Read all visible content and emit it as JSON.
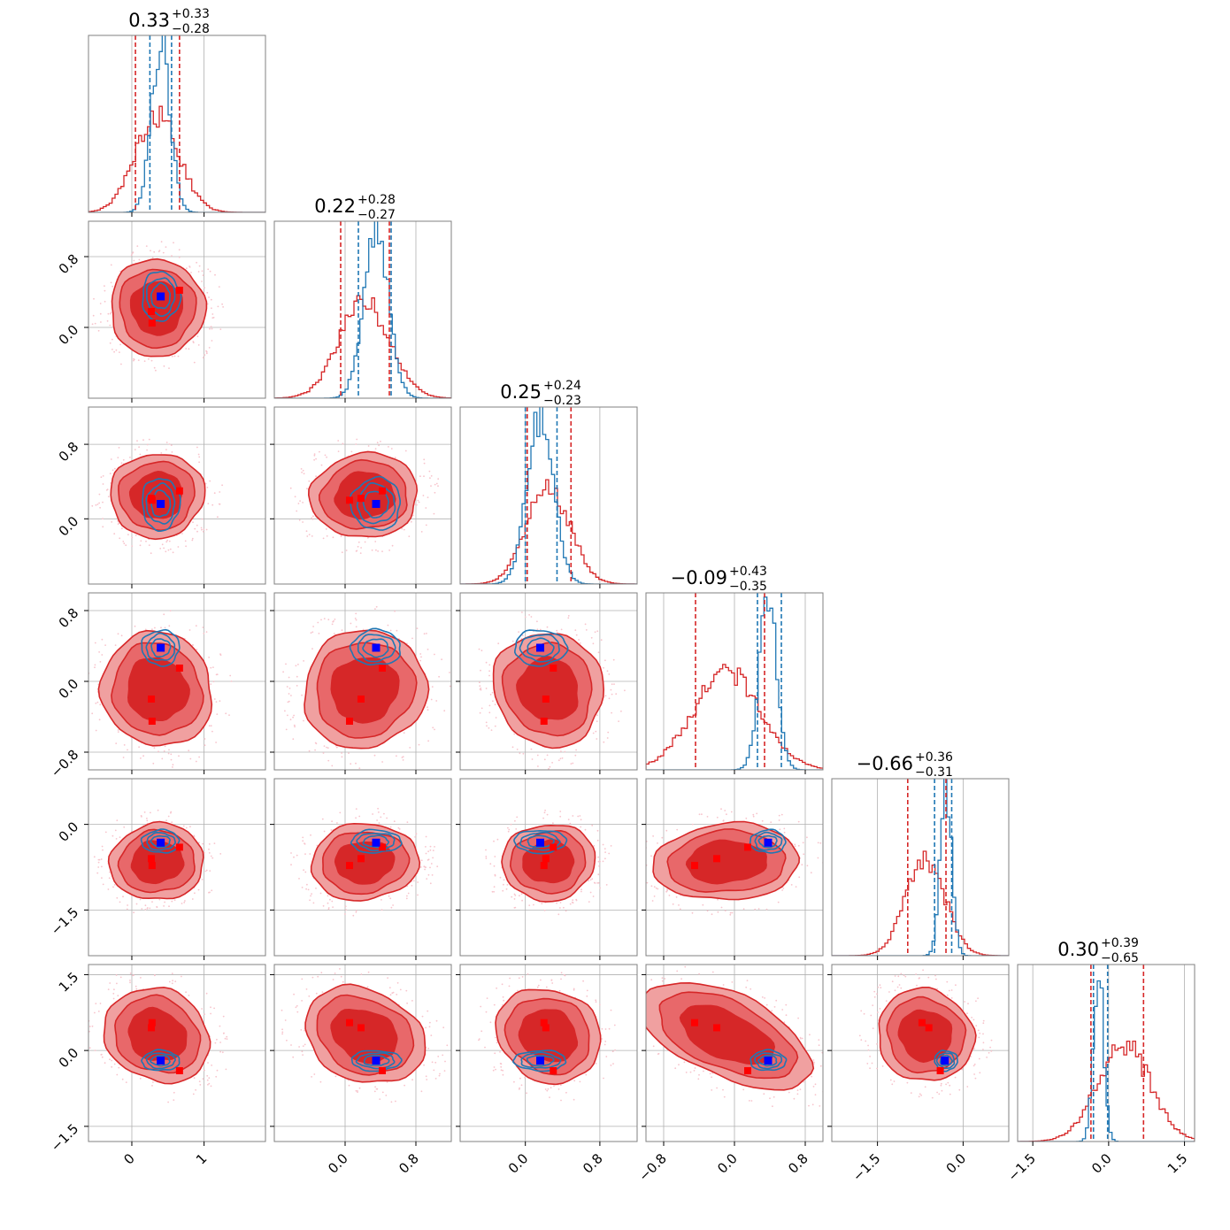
{
  "chart_data": {
    "type": "scatter",
    "subtype": "corner-plot",
    "n_params": 6,
    "grid": true,
    "colors": {
      "red": "#d62728",
      "red_light": "#f0a0a0",
      "red_mid": "#e8686a",
      "blue": "#1f77b4",
      "marker_red": "#ff0000",
      "marker_blue": "#0000ff",
      "scatter_pink": "#f7c4cc",
      "grid": "#b0b0b0"
    },
    "params": [
      {
        "range": [
          -0.6,
          1.85
        ],
        "ticks": [
          0,
          1
        ],
        "tick_labels": [
          "0",
          "1"
        ],
        "red": {
          "mu": 0.35,
          "sd": 0.3
        },
        "blue": {
          "mu": 0.4,
          "sd": 0.13
        },
        "red_q": [
          0.05,
          0.66
        ],
        "blue_q": [
          0.25,
          0.55
        ],
        "truth": 0.4,
        "red_markers": [
          0.28,
          0.27,
          0.66
        ],
        "title": {
          "value": "0.33",
          "plus": "+0.33",
          "minus": "−0.28"
        }
      },
      {
        "range": [
          -0.8,
          1.2
        ],
        "ticks": [
          0.0,
          0.8
        ],
        "tick_labels": [
          "0.0",
          "0.8"
        ],
        "red": {
          "mu": 0.22,
          "sd": 0.28
        },
        "blue": {
          "mu": 0.35,
          "sd": 0.14
        },
        "red_q": [
          -0.05,
          0.5
        ],
        "blue_q": [
          0.15,
          0.52
        ],
        "truth": 0.35,
        "red_markers": [
          0.05,
          0.18,
          0.42
        ],
        "title": {
          "value": "0.22",
          "plus": "+0.28",
          "minus": "−0.27"
        }
      },
      {
        "range": [
          -0.7,
          1.2
        ],
        "ticks": [
          0.0,
          0.8
        ],
        "tick_labels": [
          "0.0",
          "0.8"
        ],
        "red": {
          "mu": 0.25,
          "sd": 0.23
        },
        "blue": {
          "mu": 0.16,
          "sd": 0.14
        },
        "red_q": [
          0.02,
          0.49
        ],
        "blue_q": [
          0.0,
          0.34
        ],
        "truth": 0.16,
        "red_markers": [
          0.2,
          0.22,
          0.3
        ],
        "title": {
          "value": "0.25",
          "plus": "+0.24",
          "minus": "−0.23"
        }
      },
      {
        "range": [
          -1.0,
          1.0
        ],
        "ticks": [
          -0.8,
          0.0,
          0.8
        ],
        "tick_labels": [
          "−0.8",
          "0.0",
          "0.8"
        ],
        "red": {
          "mu": -0.09,
          "sd": 0.38
        },
        "blue": {
          "mu": 0.38,
          "sd": 0.1
        },
        "red_q": [
          -0.44,
          0.34
        ],
        "blue_q": [
          0.26,
          0.53
        ],
        "truth": 0.38,
        "red_markers": [
          -0.45,
          -0.2,
          0.15
        ],
        "title": {
          "value": "−0.09",
          "plus": "+0.43",
          "minus": "−0.35"
        }
      },
      {
        "range": [
          -2.3,
          0.8
        ],
        "ticks": [
          -1.5,
          0.0
        ],
        "tick_labels": [
          "−1.5",
          "0.0"
        ],
        "red": {
          "mu": -0.66,
          "sd": 0.34
        },
        "blue": {
          "mu": -0.3,
          "sd": 0.1
        },
        "red_q": [
          -0.97,
          -0.3
        ],
        "blue_q": [
          -0.5,
          -0.2
        ],
        "truth": -0.32,
        "red_markers": [
          -0.72,
          -0.6,
          -0.4
        ],
        "title": {
          "value": "−0.66",
          "plus": "+0.36",
          "minus": "−0.31"
        }
      },
      {
        "range": [
          -1.8,
          1.7
        ],
        "ticks": [
          -1.5,
          0.0,
          1.5
        ],
        "tick_labels": [
          "−1.5",
          "0.0",
          "1.5"
        ],
        "red": {
          "mu": 0.3,
          "sd": 0.52
        },
        "blue": {
          "mu": -0.2,
          "sd": 0.1
        },
        "red_q": [
          -0.35,
          0.69
        ],
        "blue_q": [
          -0.3,
          -0.02
        ],
        "truth": -0.2,
        "red_markers": [
          0.55,
          0.45,
          -0.4
        ],
        "title": {
          "value": "0.30",
          "plus": "+0.39",
          "minus": "−0.65"
        }
      }
    ]
  }
}
